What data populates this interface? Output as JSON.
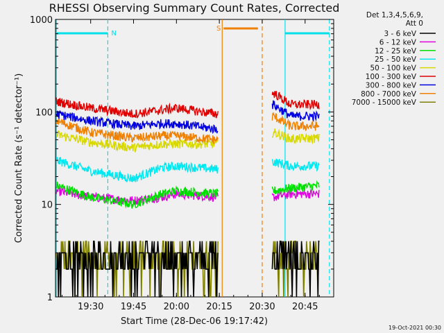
{
  "chart_data": {
    "type": "line",
    "title": "RHESSI Observing Summary Count Rates, Corrected",
    "xlabel": "Start Time (28-Dec-06 19:17:42)",
    "ylabel": "Corrected Count Rate (s⁻¹ detector⁻¹)",
    "yscale": "log",
    "ylim": [
      1,
      1000
    ],
    "xlim": [
      "19:17:42",
      "20:55:00"
    ],
    "x_ticks": [
      "19:30",
      "19:45",
      "20:00",
      "20:15",
      "20:30",
      "20:45"
    ],
    "y_ticks": [
      "1",
      "10",
      "100",
      "1000"
    ],
    "legend_header": [
      "Det 1,3,4,5,6,9,",
      "Att 0"
    ],
    "legend_position": "top-right",
    "footer": "19-Oct-2021 00:30",
    "annotations": [
      {
        "label": "N",
        "kind": "night",
        "color": "#00e0e8"
      },
      {
        "label": "S",
        "kind": "saa",
        "color": "#f08000"
      }
    ],
    "series": [
      {
        "name": "3 - 6 keV",
        "color": "#000000",
        "x": [
          "19:18",
          "19:30",
          "19:45",
          "20:00",
          "20:14",
          "20:34",
          "20:40",
          "20:50"
        ],
        "y": [
          3,
          3,
          3,
          3,
          3,
          5,
          3,
          3
        ]
      },
      {
        "name": "6 - 12 keV",
        "color": "#e000e0",
        "x": [
          "19:18",
          "19:30",
          "19:45",
          "19:55",
          "20:00",
          "20:14",
          "20:34",
          "20:40",
          "20:50"
        ],
        "y": [
          14,
          12,
          11,
          12,
          13,
          12,
          12,
          13,
          13
        ]
      },
      {
        "name": "12 - 25 keV",
        "color": "#00e000",
        "x": [
          "19:18",
          "19:30",
          "19:45",
          "19:55",
          "20:00",
          "20:14",
          "20:34",
          "20:40",
          "20:50"
        ],
        "y": [
          16,
          12,
          10,
          13,
          14,
          13,
          14,
          15,
          16
        ]
      },
      {
        "name": "25 - 50 keV",
        "color": "#00e8f0",
        "x": [
          "19:18",
          "19:30",
          "19:45",
          "19:55",
          "20:00",
          "20:14",
          "20:34",
          "20:40",
          "20:50"
        ],
        "y": [
          30,
          23,
          19,
          25,
          26,
          24,
          29,
          26,
          26
        ]
      },
      {
        "name": "50 - 100 keV",
        "color": "#d8d800",
        "x": [
          "19:18",
          "19:30",
          "19:45",
          "19:55",
          "20:00",
          "20:14",
          "20:34",
          "20:40",
          "20:50"
        ],
        "y": [
          57,
          47,
          41,
          45,
          45,
          45,
          60,
          51,
          52
        ]
      },
      {
        "name": "100 - 300 keV",
        "color": "#e00000",
        "x": [
          "19:18",
          "19:30",
          "19:45",
          "19:55",
          "20:00",
          "20:14",
          "20:34",
          "20:40",
          "20:50"
        ],
        "y": [
          130,
          110,
          95,
          105,
          110,
          95,
          160,
          120,
          120
        ]
      },
      {
        "name": "300 - 800 keV",
        "color": "#0000e0",
        "x": [
          "19:18",
          "19:30",
          "19:45",
          "19:55",
          "20:00",
          "20:14",
          "20:34",
          "20:40",
          "20:50"
        ],
        "y": [
          95,
          80,
          70,
          75,
          75,
          65,
          120,
          90,
          90
        ]
      },
      {
        "name": "800 - 7000 keV",
        "color": "#f08000",
        "x": [
          "19:18",
          "19:30",
          "19:45",
          "19:55",
          "20:00",
          "20:14",
          "20:34",
          "20:40",
          "20:50"
        ],
        "y": [
          80,
          60,
          52,
          55,
          55,
          50,
          90,
          70,
          70
        ]
      },
      {
        "name": "7000 - 15000 keV",
        "color": "#808000",
        "x": [
          "19:18",
          "19:30",
          "19:45",
          "20:00",
          "20:14",
          "20:34",
          "20:40",
          "20:50"
        ],
        "y": [
          2.5,
          2.5,
          2,
          2.5,
          2.5,
          2.5,
          2.5,
          2.5
        ]
      }
    ]
  }
}
